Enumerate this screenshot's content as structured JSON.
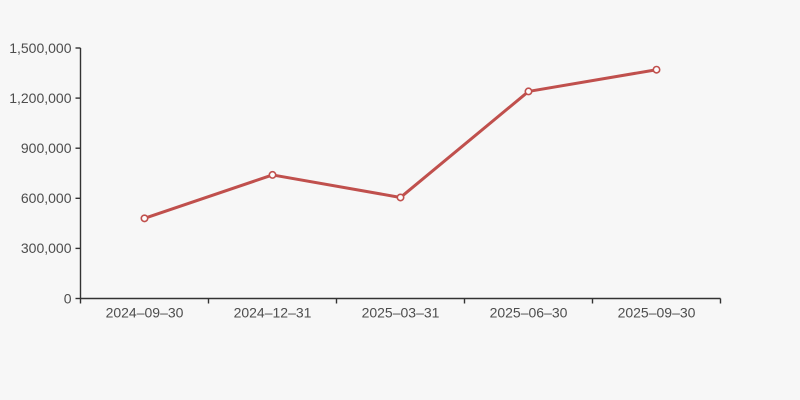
{
  "page": {
    "background": "#f7f7f7"
  },
  "chart_data": {
    "type": "line",
    "categories": [
      "2024–09–30",
      "2024–12–31",
      "2025–03–31",
      "2025–06–30",
      "2025–09–30"
    ],
    "values": [
      480000,
      740000,
      605000,
      1240000,
      1370000
    ],
    "title": "",
    "xlabel": "",
    "ylabel": "",
    "ylim": [
      0,
      1500000
    ],
    "y_ticks": {
      "values": [
        0,
        300000,
        600000,
        900000,
        1200000,
        1500000
      ],
      "labels": [
        "0",
        "300,000",
        "600,000",
        "900,000",
        "1,200,000",
        "1,500,000"
      ]
    },
    "grid": false,
    "legend": false,
    "marker": "hollow-circle",
    "colors": {
      "line": "#c0504d",
      "marker_fill": "#fdfdfd",
      "axis": "#333333",
      "tick": "#333333",
      "label": "#4d4d4d",
      "background": "#f7f7f7"
    }
  }
}
